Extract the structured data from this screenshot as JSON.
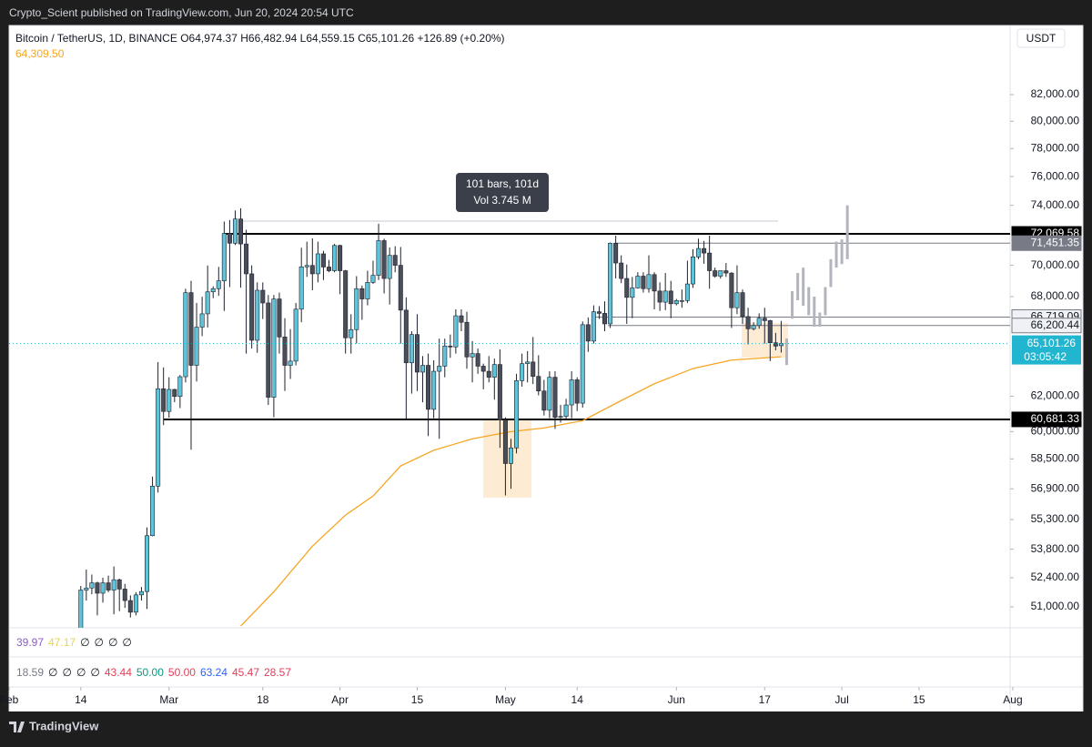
{
  "header": {
    "publisher": "Crypto_Scient published on TradingView.com, Jun 20, 2024 20:54 UTC",
    "symbol": "Bitcoin / TetherUS, 1D, BINANCE",
    "ohlc": [
      "O64,974.37",
      "H66,482.94",
      "L64,559.15",
      "C65,101.26"
    ],
    "change": "+126.89 (+0.20%)",
    "ma_value": "64,309.50",
    "currency": "USDT"
  },
  "chart_data": {
    "type": "candlestick",
    "log_scale": true,
    "ylim": [
      50020,
      87430
    ],
    "yticks": [
      {
        "value": 82000,
        "label": "82,000.00"
      },
      {
        "value": 80000,
        "label": "80,000.00"
      },
      {
        "value": 78000,
        "label": "78,000.00"
      },
      {
        "value": 76000,
        "label": "76,000.00"
      },
      {
        "value": 74000,
        "label": "74,000.00"
      },
      {
        "value": 70000,
        "label": "70,000.00"
      },
      {
        "value": 68000,
        "label": "68,000.00"
      },
      {
        "value": 62000,
        "label": "62,000.00"
      },
      {
        "value": 60000,
        "label": "60,000.00"
      },
      {
        "value": 58500,
        "label": "58,500.00"
      },
      {
        "value": 56900,
        "label": "56,900.00"
      },
      {
        "value": 55300,
        "label": "55,300.00"
      },
      {
        "value": 53800,
        "label": "53,800.00"
      },
      {
        "value": 52400,
        "label": "52,400.00"
      },
      {
        "value": 51000,
        "label": "51,000.00"
      }
    ],
    "xlim": [
      0,
      182.5
    ],
    "xticks": [
      {
        "value": 0,
        "label": "Feb"
      },
      {
        "value": 13,
        "label": "14"
      },
      {
        "value": 29,
        "label": "Mar"
      },
      {
        "value": 46,
        "label": "18"
      },
      {
        "value": 60,
        "label": "Apr"
      },
      {
        "value": 74,
        "label": "15"
      },
      {
        "value": 90,
        "label": "May"
      },
      {
        "value": 103,
        "label": "14"
      },
      {
        "value": 121,
        "label": "Jun"
      },
      {
        "value": 137,
        "label": "17"
      },
      {
        "value": 151,
        "label": "Jul"
      },
      {
        "value": 165,
        "label": "15"
      },
      {
        "value": 182,
        "label": "Aug"
      }
    ],
    "colors": {
      "up": "#5fc3d9",
      "down": "#4a4e59",
      "wick": "#1e222d"
    },
    "x": [
      13,
      14,
      15,
      16,
      17,
      18,
      19,
      20,
      21,
      22,
      23,
      24,
      25,
      26,
      27,
      28,
      29,
      30,
      31,
      32,
      33,
      34,
      35,
      36,
      37,
      38,
      39,
      40,
      41,
      42,
      43,
      44,
      45,
      46,
      47,
      48,
      49,
      50,
      51,
      52,
      53,
      54,
      55,
      56,
      57,
      58,
      59,
      60,
      61,
      62,
      63,
      64,
      65,
      66,
      67,
      68,
      69,
      70,
      71,
      72,
      73,
      74,
      75,
      76,
      77,
      78,
      79,
      80,
      81,
      82,
      83,
      84,
      85,
      86,
      87,
      88,
      89,
      90,
      91,
      92,
      93,
      94,
      95,
      96,
      97,
      98,
      99,
      100,
      101,
      102,
      103,
      104,
      105,
      106,
      107,
      108,
      109,
      110,
      111,
      112,
      113,
      114,
      115,
      116,
      117,
      118,
      119,
      120,
      121,
      122,
      123,
      124,
      125,
      126,
      127,
      128,
      129,
      130,
      131,
      132,
      133,
      134,
      135,
      136,
      137,
      138,
      139,
      140
    ],
    "ohlc": [
      [
        49700,
        52000,
        49250,
        51800
      ],
      [
        51800,
        52800,
        51300,
        51900
      ],
      [
        51900,
        52550,
        51600,
        52150
      ],
      [
        52150,
        52200,
        50600,
        51650
      ],
      [
        51650,
        52400,
        51200,
        52150
      ],
      [
        52150,
        52500,
        51700,
        51800
      ],
      [
        51800,
        52950,
        50650,
        52300
      ],
      [
        52300,
        52350,
        50800,
        51850
      ],
      [
        51850,
        52100,
        50950,
        51300
      ],
      [
        51300,
        51550,
        50500,
        50750
      ],
      [
        50750,
        51700,
        50600,
        51570
      ],
      [
        51570,
        51950,
        51300,
        51730
      ],
      [
        51730,
        54900,
        50900,
        54480
      ],
      [
        54480,
        57550,
        54450,
        57040
      ],
      [
        57040,
        64000,
        56700,
        62430
      ],
      [
        62430,
        63680,
        60360,
        61130
      ],
      [
        61130,
        63100,
        60780,
        62390
      ],
      [
        62390,
        62430,
        61660,
        61990
      ],
      [
        61990,
        63230,
        61320,
        63130
      ],
      [
        63130,
        68500,
        62800,
        68250
      ],
      [
        68250,
        69000,
        59000,
        63800
      ],
      [
        63800,
        67600,
        62850,
        66100
      ],
      [
        66100,
        67990,
        65550,
        66920
      ],
      [
        66920,
        69990,
        66080,
        68300
      ],
      [
        68300,
        68650,
        67900,
        68500
      ],
      [
        68500,
        69900,
        68050,
        69000
      ],
      [
        69000,
        72900,
        67100,
        72100
      ],
      [
        72100,
        73000,
        68600,
        71450
      ],
      [
        71450,
        73650,
        71330,
        73070
      ],
      [
        73070,
        73800,
        68560,
        71400
      ],
      [
        71400,
        72350,
        64500,
        69450
      ],
      [
        69450,
        70000,
        64800,
        65300
      ],
      [
        65300,
        68900,
        64550,
        68400
      ],
      [
        68400,
        68900,
        66600,
        67600
      ],
      [
        67600,
        68100,
        61500,
        61940
      ],
      [
        61940,
        68100,
        60800,
        67850
      ],
      [
        67850,
        68250,
        64500,
        65500
      ],
      [
        65500,
        66650,
        62300,
        63800
      ],
      [
        63800,
        65980,
        63000,
        64050
      ],
      [
        64050,
        67600,
        63800,
        67210
      ],
      [
        67210,
        71150,
        66400,
        69900
      ],
      [
        69900,
        71550,
        69250,
        69990
      ],
      [
        69990,
        71770,
        68400,
        69450
      ],
      [
        69450,
        71550,
        68900,
        70750
      ],
      [
        70750,
        70950,
        69050,
        69890
      ],
      [
        69890,
        70350,
        69550,
        69650
      ],
      [
        69650,
        71400,
        69550,
        71300
      ],
      [
        71300,
        71350,
        68150,
        69650
      ],
      [
        69650,
        69700,
        64500,
        65450
      ],
      [
        65450,
        66900,
        64500,
        65950
      ],
      [
        65950,
        69300,
        65100,
        68500
      ],
      [
        68500,
        68700,
        66550,
        67850
      ],
      [
        67850,
        69650,
        67450,
        68900
      ],
      [
        68900,
        70300,
        68800,
        69350
      ],
      [
        69350,
        72750,
        69050,
        71620
      ],
      [
        71620,
        71750,
        68200,
        69150
      ],
      [
        69150,
        71170,
        67500,
        70650
      ],
      [
        70650,
        71250,
        69550,
        70000
      ],
      [
        70000,
        71200,
        65100,
        67150
      ],
      [
        67150,
        67950,
        60650,
        63950
      ],
      [
        63950,
        65850,
        62150,
        65650
      ],
      [
        65650,
        66900,
        62300,
        63400
      ],
      [
        63400,
        64350,
        61650,
        63800
      ],
      [
        63800,
        64500,
        59750,
        61250
      ],
      [
        61250,
        64100,
        60750,
        63450
      ],
      [
        63450,
        65400,
        59600,
        63750
      ],
      [
        63750,
        65400,
        63100,
        64950
      ],
      [
        64950,
        65650,
        64250,
        64900
      ],
      [
        64900,
        67200,
        64500,
        66800
      ],
      [
        66800,
        67200,
        65850,
        66400
      ],
      [
        66400,
        67050,
        63600,
        64300
      ],
      [
        64300,
        65250,
        62800,
        64500
      ],
      [
        64500,
        64800,
        63300,
        63750
      ],
      [
        63750,
        63900,
        62400,
        63450
      ],
      [
        63450,
        64350,
        62800,
        63100
      ],
      [
        63100,
        64200,
        61800,
        63850
      ],
      [
        63850,
        64750,
        59100,
        60650
      ],
      [
        60650,
        60800,
        56550,
        58250
      ],
      [
        58250,
        59600,
        56900,
        59100
      ],
      [
        59100,
        63300,
        58800,
        62900
      ],
      [
        62900,
        64500,
        62550,
        63900
      ],
      [
        63900,
        64650,
        62800,
        64000
      ],
      [
        64000,
        65500,
        62700,
        63150
      ],
      [
        63150,
        64400,
        62050,
        62300
      ],
      [
        62300,
        62950,
        60900,
        61200
      ],
      [
        61200,
        63450,
        60750,
        63100
      ],
      [
        63100,
        63450,
        60150,
        60800
      ],
      [
        60800,
        61500,
        60500,
        60850
      ],
      [
        60850,
        61850,
        60650,
        61500
      ],
      [
        61500,
        63450,
        60750,
        62950
      ],
      [
        62950,
        63100,
        61150,
        61600
      ],
      [
        61600,
        66450,
        61350,
        66250
      ],
      [
        66250,
        66700,
        64600,
        65250
      ],
      [
        65250,
        67450,
        65100,
        67050
      ],
      [
        67050,
        67400,
        66600,
        66950
      ],
      [
        66950,
        67700,
        65850,
        66300
      ],
      [
        66300,
        71500,
        66050,
        71450
      ],
      [
        71450,
        71950,
        69150,
        70150
      ],
      [
        70150,
        70650,
        68850,
        69150
      ],
      [
        69150,
        70050,
        66300,
        67950
      ],
      [
        67950,
        69250,
        66650,
        68550
      ],
      [
        68550,
        69550,
        68500,
        69300
      ],
      [
        69300,
        69550,
        68250,
        68500
      ],
      [
        68500,
        70650,
        68250,
        69400
      ],
      [
        69400,
        69550,
        67200,
        68350
      ],
      [
        68350,
        68900,
        67100,
        67650
      ],
      [
        67650,
        69500,
        67150,
        68350
      ],
      [
        68350,
        69000,
        66650,
        67550
      ],
      [
        67550,
        67850,
        67450,
        67750
      ],
      [
        67750,
        68450,
        67300,
        67750
      ],
      [
        67750,
        70300,
        67600,
        68800
      ],
      [
        68800,
        71050,
        68550,
        70550
      ],
      [
        70550,
        71750,
        70400,
        71100
      ],
      [
        71100,
        71600,
        70100,
        70800
      ],
      [
        70800,
        71950,
        68500,
        69650
      ],
      [
        69650,
        69850,
        69200,
        69300
      ],
      [
        69300,
        69550,
        69150,
        69650
      ],
      [
        69650,
        70150,
        69250,
        69500
      ],
      [
        69500,
        69550,
        66050,
        67300
      ],
      [
        67300,
        69999,
        66900,
        68250
      ],
      [
        68250,
        68450,
        66300,
        66750
      ],
      [
        66750,
        67300,
        65050,
        66000
      ],
      [
        66000,
        66400,
        65900,
        66200
      ],
      [
        66200,
        66950,
        66000,
        66650
      ],
      [
        66650,
        67300,
        65100,
        66500
      ],
      [
        66500,
        66550,
        64050,
        65150
      ],
      [
        65150,
        65750,
        64700,
        64950
      ],
      [
        64974.37,
        66482.94,
        64559.15,
        65101.26
      ]
    ],
    "moving_average": {
      "color": "#f5a623",
      "x": [
        42,
        48,
        55,
        61,
        66,
        71,
        77,
        84,
        91,
        97,
        104,
        111,
        117,
        124,
        131,
        140
      ],
      "values": [
        50100,
        51720,
        53950,
        55530,
        56520,
        58120,
        58970,
        59600,
        60000,
        60200,
        60610,
        61750,
        62720,
        63610,
        64110,
        64309.5
      ]
    },
    "projection": {
      "color": "#b2b5be",
      "x": [
        141,
        142,
        143,
        144,
        145,
        146,
        147,
        148,
        149,
        150,
        151,
        152
      ],
      "low": [
        63820,
        66620,
        67770,
        67420,
        66830,
        66130,
        66130,
        66830,
        68600,
        69850,
        70080,
        70400
      ],
      "high": [
        65400,
        68340,
        69500,
        69850,
        68600,
        68000,
        67000,
        68600,
        70400,
        71550,
        71700,
        74000
      ]
    },
    "levels": [
      {
        "value": 72069.58,
        "label": "72,069.58",
        "color": "#000000"
      },
      {
        "value": 71451.35,
        "label": "71,451.35",
        "color": "#787b86"
      },
      {
        "value": 66719.09,
        "label": "66,719.09",
        "color": "#787b86"
      },
      {
        "value": 66200.44,
        "label": "66,200.44",
        "color": "#787b86"
      },
      {
        "value": 60681.33,
        "label": "60,681.33",
        "color": "#000000"
      }
    ],
    "last_price": {
      "value": 65101.26,
      "label": "65,101.26",
      "countdown": "03:05:42",
      "color": "#22b5d0"
    },
    "measure": [
      "101 bars, 101d",
      "Vol 3.745 M"
    ],
    "indicators": [
      [
        {
          "text": "39.97",
          "color": "#8e5cc8"
        },
        {
          "text": "47.17",
          "color": "#e8d44d"
        },
        {
          "text": "∅",
          "color": "#131722"
        },
        {
          "text": "∅",
          "color": "#131722"
        },
        {
          "text": "∅",
          "color": "#131722"
        },
        {
          "text": "∅",
          "color": "#131722"
        }
      ],
      [
        {
          "text": "18.59",
          "color": "#787b86"
        },
        {
          "text": "∅",
          "color": "#131722"
        },
        {
          "text": "∅",
          "color": "#131722"
        },
        {
          "text": "∅",
          "color": "#131722"
        },
        {
          "text": "∅",
          "color": "#131722"
        },
        {
          "text": "43.44",
          "color": "#e0405a"
        },
        {
          "text": "50.00",
          "color": "#089981"
        },
        {
          "text": "50.00",
          "color": "#e0405a"
        },
        {
          "text": "63.24",
          "color": "#2962ff"
        },
        {
          "text": "45.47",
          "color": "#e0405a"
        },
        {
          "text": "28.57",
          "color": "#e0405a"
        }
      ]
    ]
  },
  "footer": "TradingView"
}
